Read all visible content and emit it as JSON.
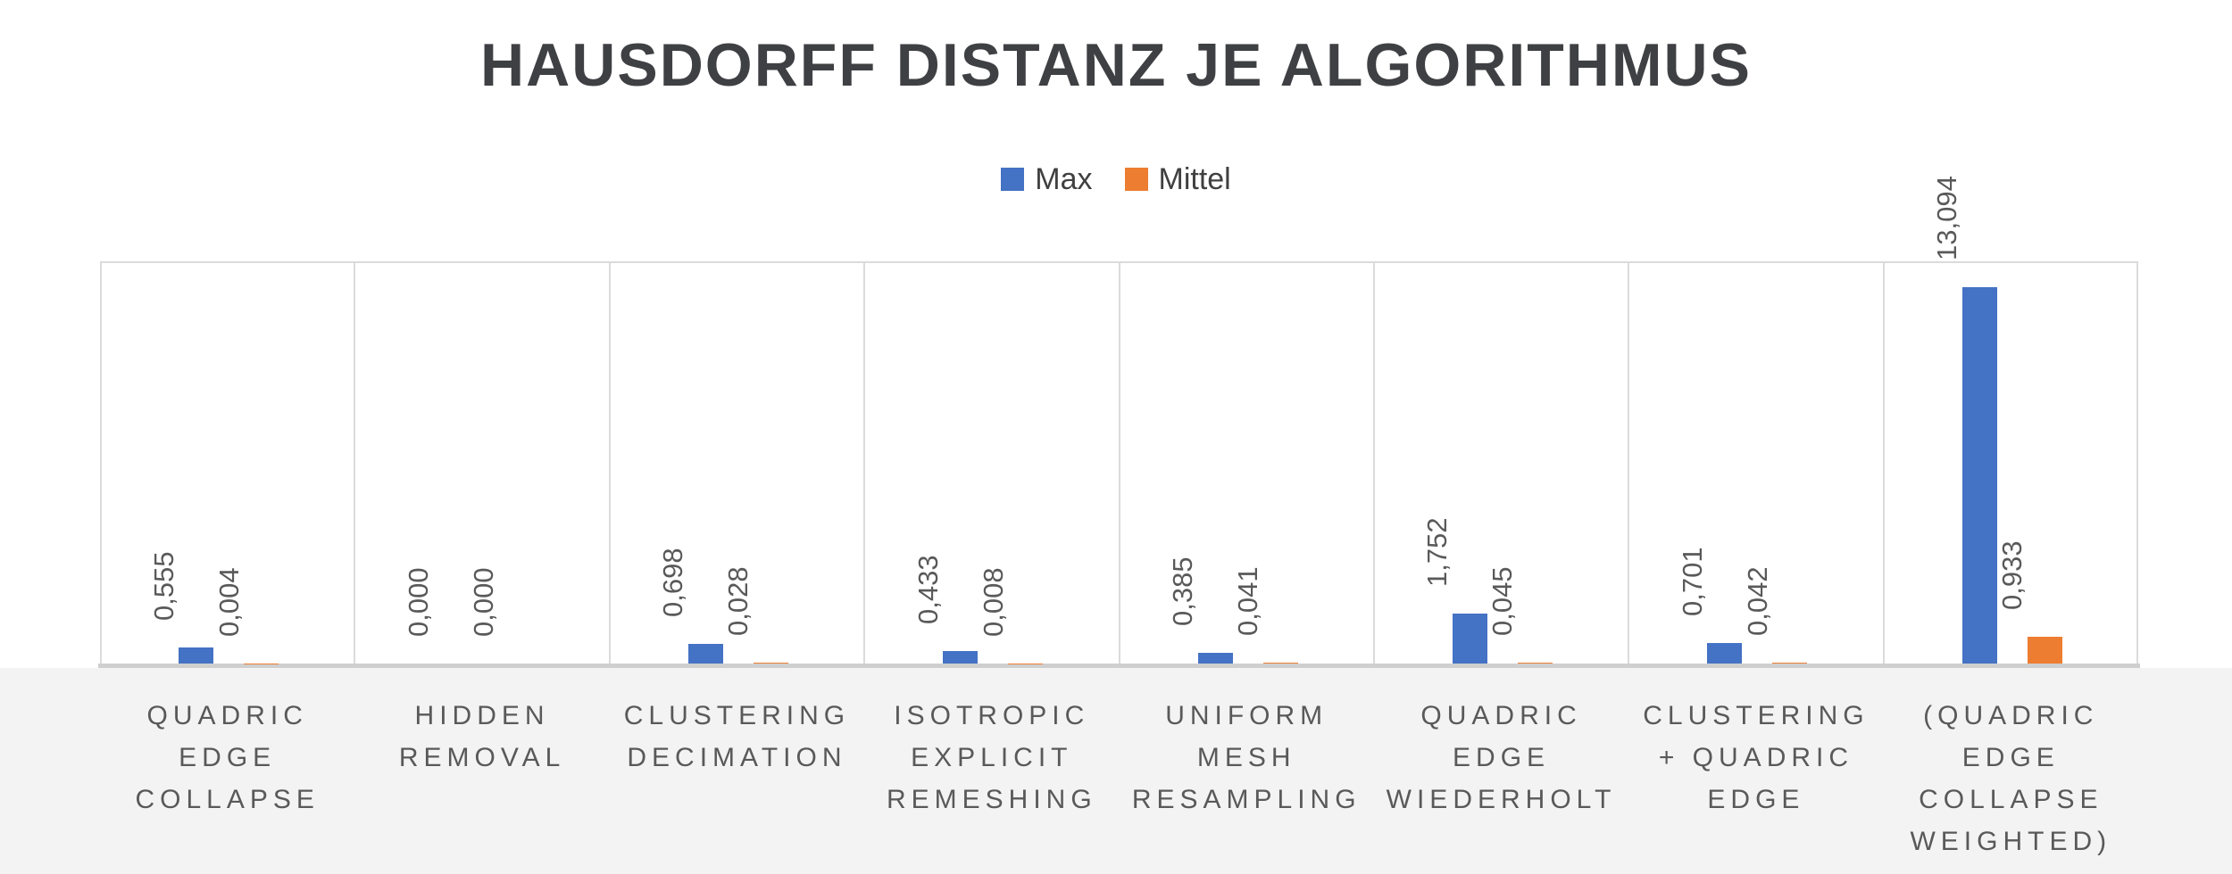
{
  "chart_data": {
    "type": "bar",
    "title": "HAUSDORFF DISTANZ JE ALGORITHMUS",
    "categories": [
      "QUADRIC\nEDGE\nCOLLAPSE",
      "HIDDEN\nREMOVAL",
      "CLUSTERING\nDECIMATION",
      "ISOTROPIC\nEXPLICIT\nREMESHING",
      "UNIFORM\nMESH\nRESAMPLING",
      "QUADRIC\nEDGE\nWIEDERHOLT",
      "CLUSTERING\n+ QUADRIC\nEDGE",
      "(QUADRIC\nEDGE\nCOLLAPSE\nWEIGHTED)"
    ],
    "series": [
      {
        "name": "Max",
        "color": "#4472C4",
        "values": [
          0.555,
          0.0,
          0.698,
          0.433,
          0.385,
          1.752,
          0.701,
          13.094
        ],
        "labels": [
          "0,555",
          "0,000",
          "0,698",
          "0,433",
          "0,385",
          "1,752",
          "0,701",
          "13,094"
        ]
      },
      {
        "name": "Mittel",
        "color": "#ED7D31",
        "values": [
          0.004,
          0.0,
          0.028,
          0.008,
          0.041,
          0.045,
          0.042,
          0.933
        ],
        "labels": [
          "0,004",
          "0,000",
          "0,028",
          "0,008",
          "0,041",
          "0,045",
          "0,042",
          "0,933"
        ]
      }
    ],
    "xlabel": "",
    "ylabel": "",
    "ylim": [
      0,
      14
    ],
    "y_axis_labels_visible": false,
    "grid": {
      "horizontal": false,
      "vertical_category_separators": true
    },
    "legend_position": "top-center",
    "value_labels": {
      "position": "outside-end",
      "rotation_deg": 90,
      "number_format": "german-decimal-comma-3dp"
    },
    "colors": {
      "title": "#3F4043",
      "legend_text": "#404040",
      "label_gray": "#595959",
      "gridline": "#DBDBDB",
      "axis_line": "#CFCFCF",
      "below_axis_band": "#F3F3F4",
      "background": "#FFFFFF"
    }
  }
}
